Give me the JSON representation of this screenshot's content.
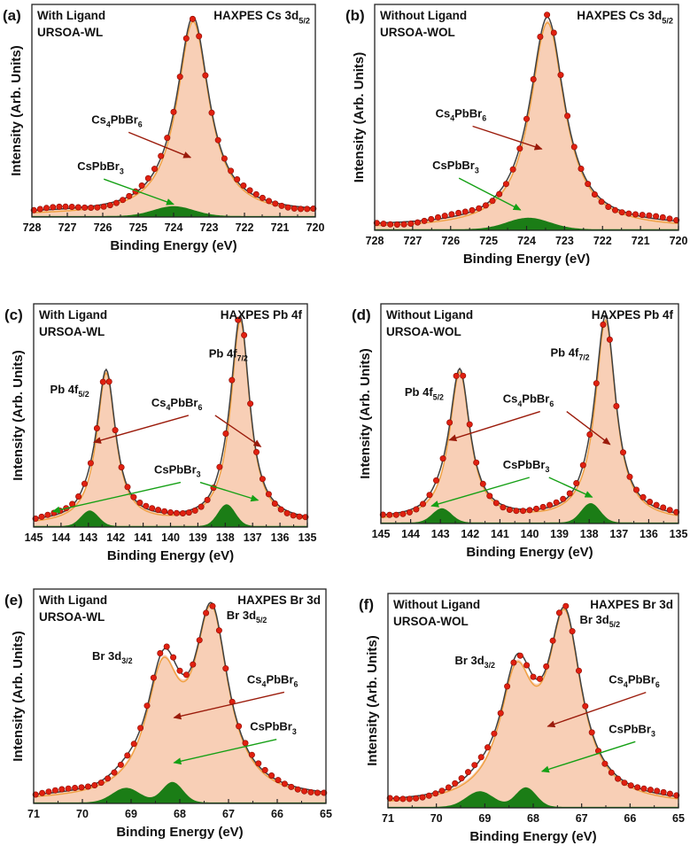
{
  "colors": {
    "envelope_fill": "#f8cfb6",
    "envelope_line": "#f0a040",
    "fit_line": "#404040",
    "data_points": "#e02010",
    "data_points_edge": "#8a0a00",
    "minor_fill": "#1b7d16",
    "arrow_main": "#9b1b0b",
    "arrow_minor": "#15a015"
  },
  "chart_data": [
    {
      "panel": "(a)",
      "type": "area",
      "title": "HAXPES Cs 3d",
      "title_sub": "5/2",
      "sample_line1": "With Ligand",
      "sample_line2": "URSOA-WL",
      "xlabel": "Binding Energy (eV)",
      "ylabel": "Intensity (Arb. Units)",
      "xlim": [
        728,
        720
      ],
      "xticks": [
        "728",
        "727",
        "726",
        "725",
        "724",
        "723",
        "722",
        "721",
        "720"
      ],
      "ylim": [
        0,
        1.08
      ],
      "baseline": 0.02,
      "main_peaks": [
        {
          "center": 723.45,
          "height": 0.985,
          "width": 0.55
        }
      ],
      "minor_peaks": [
        {
          "center": 724.0,
          "height": 0.05,
          "width": 0.8
        }
      ],
      "labels": [
        {
          "name": "compound-label-main",
          "main": "Cs",
          "sub1": "4",
          "mid": "PbBr",
          "sub2": "6"
        },
        {
          "name": "compound-label-minor",
          "main": "CsPbBr",
          "sub1": "3",
          "mid": "",
          "sub2": ""
        }
      ],
      "peak_labels": []
    },
    {
      "panel": "(b)",
      "type": "area",
      "title": "HAXPES Cs 3d",
      "title_sub": "5/2",
      "sample_line1": "Without Ligand",
      "sample_line2": "URSOA-WOL",
      "xlabel": "Binding Energy (eV)",
      "ylabel": "Intensity (Arb. Units)",
      "xlim": [
        728,
        720
      ],
      "xticks": [
        "728",
        "727",
        "726",
        "725",
        "724",
        "723",
        "722",
        "721",
        "720"
      ],
      "ylim": [
        0,
        1.08
      ],
      "baseline": 0.02,
      "main_peaks": [
        {
          "center": 723.45,
          "height": 0.985,
          "width": 0.55
        }
      ],
      "minor_peaks": [
        {
          "center": 723.95,
          "height": 0.055,
          "width": 0.8
        }
      ],
      "labels": [
        {
          "name": "compound-label-main",
          "main": "Cs",
          "sub1": "4",
          "mid": "PbBr",
          "sub2": "6"
        },
        {
          "name": "compound-label-minor",
          "main": "CsPbBr",
          "sub1": "3",
          "mid": "",
          "sub2": ""
        }
      ],
      "peak_labels": []
    },
    {
      "panel": "(c)",
      "type": "area",
      "title": "HAXPES Pb 4f",
      "title_sub": "",
      "sample_line1": "With Ligand",
      "sample_line2": "URSOA-WL",
      "xlabel": "Binding Energy (eV)",
      "ylabel": "Intensity (Arb. Units)",
      "xlim": [
        145,
        135
      ],
      "xticks": [
        "145",
        "144",
        "143",
        "142",
        "141",
        "140",
        "139",
        "138",
        "137",
        "136",
        "135"
      ],
      "ylim": [
        0,
        1.08
      ],
      "baseline": 0.02,
      "main_peaks": [
        {
          "center": 142.35,
          "height": 0.73,
          "width": 0.42
        },
        {
          "center": 137.45,
          "height": 0.985,
          "width": 0.42
        }
      ],
      "minor_peaks": [
        {
          "center": 142.95,
          "height": 0.075,
          "width": 0.45
        },
        {
          "center": 137.95,
          "height": 0.105,
          "width": 0.45
        }
      ],
      "labels": [
        {
          "name": "compound-label-main",
          "main": "Cs",
          "sub1": "4",
          "mid": "PbBr",
          "sub2": "6"
        },
        {
          "name": "compound-label-minor",
          "main": "CsPbBr",
          "sub1": "3",
          "mid": "",
          "sub2": ""
        }
      ],
      "peak_labels": [
        {
          "name": "peak-label-pb-4f52",
          "text": "Pb 4f",
          "sub": "5/2"
        },
        {
          "name": "peak-label-pb-4f72",
          "text": "Pb 4f",
          "sub": "7/2"
        }
      ]
    },
    {
      "panel": "(d)",
      "type": "area",
      "title": "HAXPES Pb 4f",
      "title_sub": "",
      "sample_line1": "Without Ligand",
      "sample_line2": "URSOA-WOL",
      "xlabel": "Binding Energy (eV)",
      "ylabel": "Intensity (Arb. Units)",
      "xlim": [
        145,
        135
      ],
      "xticks": [
        "145",
        "144",
        "143",
        "142",
        "141",
        "140",
        "139",
        "138",
        "137",
        "136",
        "135"
      ],
      "ylim": [
        0,
        1.08
      ],
      "baseline": 0.02,
      "main_peaks": [
        {
          "center": 142.35,
          "height": 0.73,
          "width": 0.42
        },
        {
          "center": 137.45,
          "height": 0.985,
          "width": 0.42
        }
      ],
      "minor_peaks": [
        {
          "center": 142.95,
          "height": 0.07,
          "width": 0.45
        },
        {
          "center": 137.95,
          "height": 0.095,
          "width": 0.45
        }
      ],
      "labels": [
        {
          "name": "compound-label-main",
          "main": "Cs",
          "sub1": "4",
          "mid": "PbBr",
          "sub2": "6"
        },
        {
          "name": "compound-label-minor",
          "main": "CsPbBr",
          "sub1": "3",
          "mid": "",
          "sub2": ""
        }
      ],
      "peak_labels": [
        {
          "name": "peak-label-pb-4f52",
          "text": "Pb 4f",
          "sub": "5/2"
        },
        {
          "name": "peak-label-pb-4f72",
          "text": "Pb 4f",
          "sub": "7/2"
        }
      ]
    },
    {
      "panel": "(e)",
      "type": "area",
      "title": "HAXPES Br 3d",
      "title_sub": "",
      "sample_line1": "With Ligand",
      "sample_line2": "URSOA-WL",
      "xlabel": "Binding Energy (eV)",
      "ylabel": "Intensity (Arb. Units)",
      "xlim": [
        71,
        65
      ],
      "xticks": [
        "71",
        "70",
        "69",
        "68",
        "67",
        "66",
        "65"
      ],
      "ylim": [
        0,
        1.1
      ],
      "baseline": 0.02,
      "main_peaks": [
        {
          "center": 67.35,
          "height": 0.92,
          "width": 0.42
        },
        {
          "center": 68.35,
          "height": 0.6,
          "width": 0.42
        }
      ],
      "minor_peaks": [
        {
          "center": 68.15,
          "height": 0.105,
          "width": 0.3
        },
        {
          "center": 69.1,
          "height": 0.075,
          "width": 0.4
        }
      ],
      "labels": [
        {
          "name": "compound-label-main",
          "main": "Cs",
          "sub1": "4",
          "mid": "PbBr",
          "sub2": "6"
        },
        {
          "name": "compound-label-minor",
          "main": "CsPbBr",
          "sub1": "3",
          "mid": "",
          "sub2": ""
        }
      ],
      "peak_labels": [
        {
          "name": "peak-label-br-3d32",
          "text": "Br 3d",
          "sub": "3/2"
        },
        {
          "name": "peak-label-br-3d52",
          "text": "Br 3d",
          "sub": "5/2"
        }
      ]
    },
    {
      "panel": "(f)",
      "type": "area",
      "title": "HAXPES Br 3d",
      "title_sub": "",
      "sample_line1": "Without Ligand",
      "sample_line2": "URSOA-WOL",
      "xlabel": "Binding Energy (eV)",
      "ylabel": "Intensity (Arb. Units)",
      "xlim": [
        71,
        65
      ],
      "xticks": [
        "71",
        "70",
        "69",
        "68",
        "67",
        "66",
        "65"
      ],
      "ylim": [
        0,
        1.1
      ],
      "baseline": 0.02,
      "main_peaks": [
        {
          "center": 67.35,
          "height": 0.92,
          "width": 0.42
        },
        {
          "center": 68.35,
          "height": 0.6,
          "width": 0.42
        }
      ],
      "minor_peaks": [
        {
          "center": 68.15,
          "height": 0.1,
          "width": 0.3
        },
        {
          "center": 69.1,
          "height": 0.08,
          "width": 0.4
        }
      ],
      "labels": [
        {
          "name": "compound-label-main",
          "main": "Cs",
          "sub1": "4",
          "mid": "PbBr",
          "sub2": "6"
        },
        {
          "name": "compound-label-minor",
          "main": "CsPbBr",
          "sub1": "3",
          "mid": "",
          "sub2": ""
        }
      ],
      "peak_labels": [
        {
          "name": "peak-label-br-3d32",
          "text": "Br 3d",
          "sub": "3/2"
        },
        {
          "name": "peak-label-br-3d52",
          "text": "Br 3d",
          "sub": "5/2"
        }
      ]
    }
  ]
}
